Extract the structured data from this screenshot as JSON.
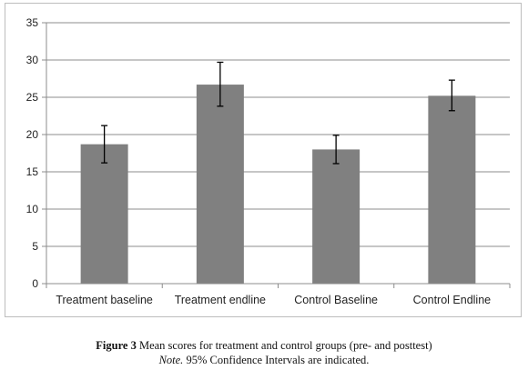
{
  "chart_data": {
    "type": "bar",
    "categories": [
      "Treatment baseline",
      "Treatment endline",
      "Control Baseline",
      "Control Endline"
    ],
    "values": [
      18.7,
      26.7,
      18.0,
      25.2
    ],
    "error_bars": [
      {
        "low": 16.2,
        "high": 21.2
      },
      {
        "low": 23.8,
        "high": 29.7
      },
      {
        "low": 16.1,
        "high": 19.9
      },
      {
        "low": 23.2,
        "high": 27.3
      }
    ],
    "ylim": [
      0,
      35
    ],
    "yticks": [
      "0",
      "5",
      "10",
      "15",
      "20",
      "25",
      "30",
      "35"
    ],
    "grid": true,
    "colors": {
      "bar": "#808080",
      "grid": "#8c8c8c",
      "axis": "#8c8c8c",
      "error": "#000000"
    }
  },
  "caption": {
    "figure_label": "Figure 3",
    "figure_text": " Mean scores for treatment and control groups (pre- and posttest)",
    "note_label": "Note.",
    "note_text": " 95% Confidence Intervals are indicated."
  }
}
